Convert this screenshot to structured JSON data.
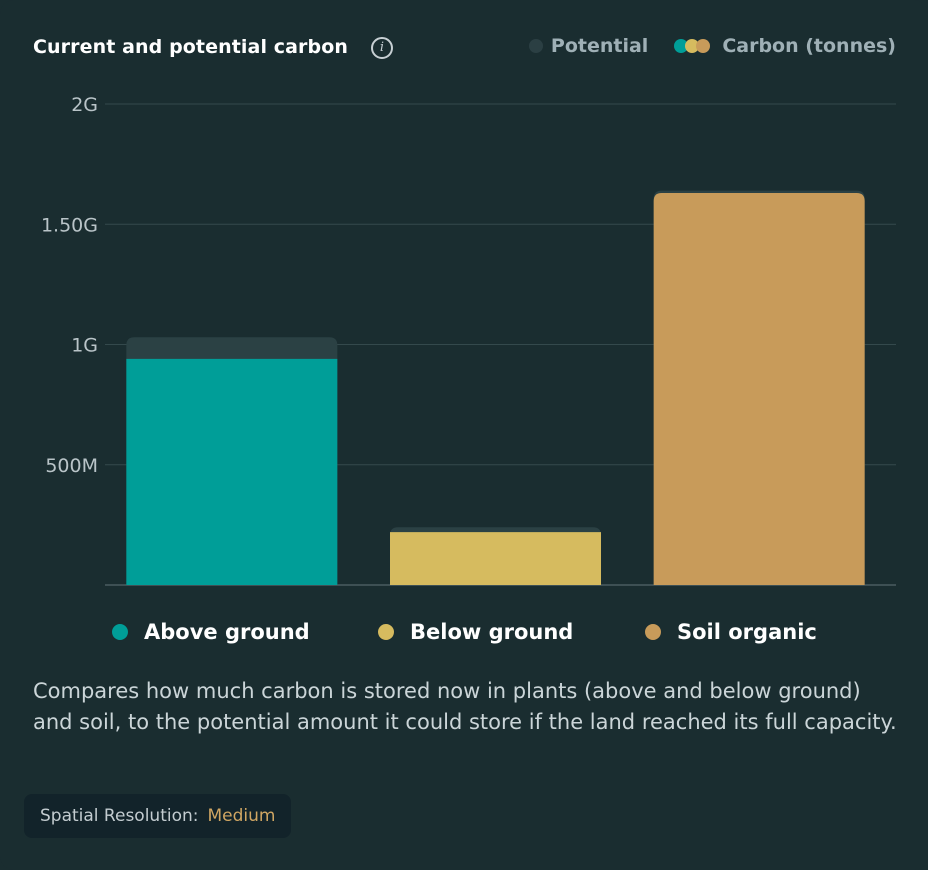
{
  "header": {
    "title": "Current and potential carbon",
    "info_icon": "i",
    "legend_potential": "Potential",
    "legend_carbon": "Carbon (tonnes)"
  },
  "colors": {
    "background": "#1a2d30",
    "potential": "#2b4144",
    "above_ground": "#009e98",
    "below_ground": "#d6bb5f",
    "soil_organic": "#c89b5a",
    "gridline": "#34494c"
  },
  "chart_data": {
    "type": "bar",
    "categories": [
      "Above ground",
      "Below ground",
      "Soil organic"
    ],
    "series": [
      {
        "name": "Carbon (tonnes)",
        "values": [
          940000000,
          220000000,
          1630000000
        ]
      },
      {
        "name": "Potential",
        "values": [
          1030000000,
          240000000,
          1640000000
        ]
      }
    ],
    "y_ticks": [
      {
        "value": 0,
        "label": ""
      },
      {
        "value": 500000000,
        "label": "500M"
      },
      {
        "value": 1000000000,
        "label": "1G"
      },
      {
        "value": 1500000000,
        "label": "1.50G"
      },
      {
        "value": 2000000000,
        "label": "2G"
      }
    ],
    "ylim": [
      0,
      2000000000
    ],
    "grid": true,
    "legend": "top-right"
  },
  "bottom_legend": [
    {
      "label": "Above ground",
      "color": "#009e98"
    },
    {
      "label": "Below ground",
      "color": "#d6bb5f"
    },
    {
      "label": "Soil organic",
      "color": "#c89b5a"
    }
  ],
  "description": "Compares how much carbon is stored now in plants (above and below ground) and soil, to the potential amount it could store if the land reached its full capacity.",
  "badge": {
    "label": "Spatial Resolution:",
    "value": "Medium"
  }
}
